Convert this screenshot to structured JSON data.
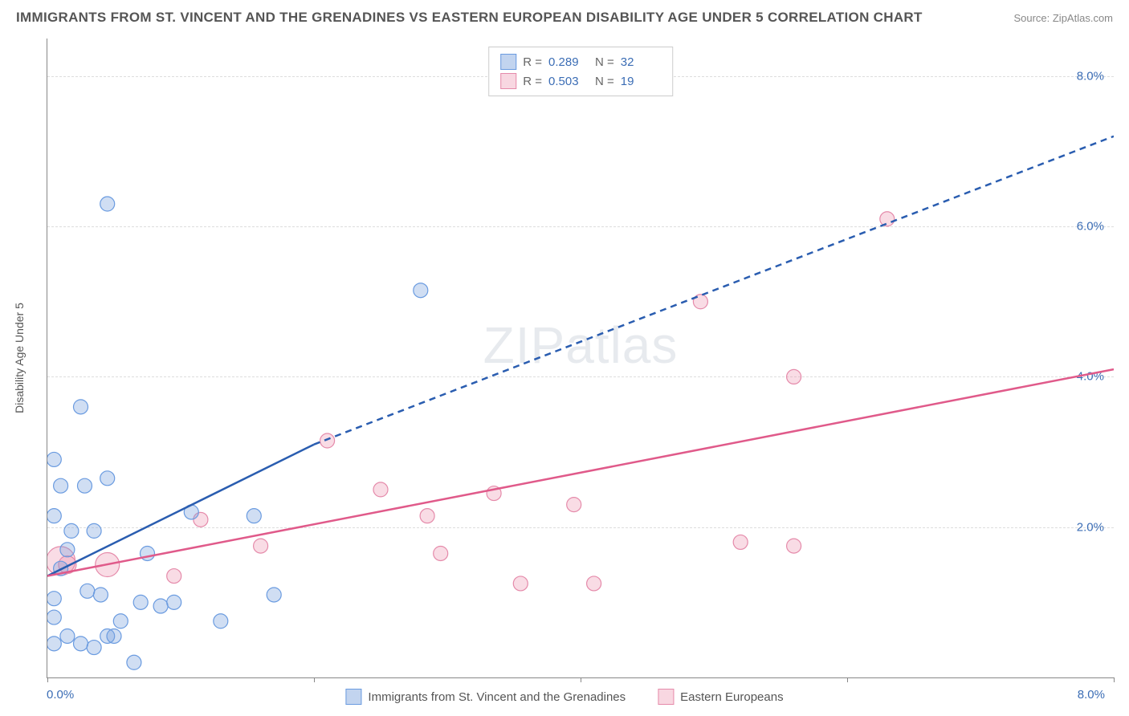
{
  "header": {
    "title": "IMMIGRANTS FROM ST. VINCENT AND THE GRENADINES VS EASTERN EUROPEAN DISABILITY AGE UNDER 5 CORRELATION CHART",
    "source": "Source: ZipAtlas.com"
  },
  "chart": {
    "type": "scatter",
    "y_axis_label": "Disability Age Under 5",
    "x_range": [
      0.0,
      8.0
    ],
    "y_range": [
      0.0,
      8.5
    ],
    "x_ticks": [
      0.0,
      2.0,
      4.0,
      6.0,
      8.0
    ],
    "y_gridlines": [
      2.0,
      4.0,
      6.0,
      8.0
    ],
    "y_tick_labels": [
      "2.0%",
      "4.0%",
      "6.0%",
      "8.0%"
    ],
    "x_tick_label_left": "0.0%",
    "x_tick_label_right": "8.0%",
    "colors": {
      "blue_fill": "rgba(120,160,220,0.35)",
      "blue_stroke": "#6a9be0",
      "pink_fill": "rgba(235,140,170,0.30)",
      "pink_stroke": "#e58aaa",
      "blue_line": "#2a5db0",
      "pink_line": "#e05a8a",
      "axis_text": "#3b6db5",
      "grid": "#dddddd"
    },
    "legend_top": [
      {
        "swatch": "blue",
        "r": "0.289",
        "n": "32"
      },
      {
        "swatch": "pink",
        "r": "0.503",
        "n": "19"
      }
    ],
    "legend_bottom": [
      {
        "swatch": "blue",
        "label": "Immigrants from St. Vincent and the Grenadines"
      },
      {
        "swatch": "pink",
        "label": "Eastern Europeans"
      }
    ],
    "series": {
      "blue": {
        "points": [
          {
            "x": 0.05,
            "y": 1.05,
            "r": 9
          },
          {
            "x": 0.1,
            "y": 1.45,
            "r": 9
          },
          {
            "x": 0.05,
            "y": 2.15,
            "r": 9
          },
          {
            "x": 0.05,
            "y": 2.9,
            "r": 9
          },
          {
            "x": 0.1,
            "y": 2.55,
            "r": 9
          },
          {
            "x": 0.28,
            "y": 2.55,
            "r": 9
          },
          {
            "x": 0.18,
            "y": 1.95,
            "r": 9
          },
          {
            "x": 0.35,
            "y": 1.95,
            "r": 9
          },
          {
            "x": 0.05,
            "y": 0.8,
            "r": 9
          },
          {
            "x": 0.15,
            "y": 0.55,
            "r": 9
          },
          {
            "x": 0.25,
            "y": 0.45,
            "r": 9
          },
          {
            "x": 0.35,
            "y": 0.4,
            "r": 9
          },
          {
            "x": 0.45,
            "y": 0.55,
            "r": 9
          },
          {
            "x": 0.55,
            "y": 0.75,
            "r": 9
          },
          {
            "x": 0.5,
            "y": 0.55,
            "r": 9
          },
          {
            "x": 0.65,
            "y": 0.2,
            "r": 9
          },
          {
            "x": 0.7,
            "y": 1.0,
            "r": 9
          },
          {
            "x": 0.75,
            "y": 1.65,
            "r": 9
          },
          {
            "x": 0.4,
            "y": 1.1,
            "r": 9
          },
          {
            "x": 0.85,
            "y": 0.95,
            "r": 9
          },
          {
            "x": 0.95,
            "y": 1.0,
            "r": 9
          },
          {
            "x": 0.45,
            "y": 2.65,
            "r": 9
          },
          {
            "x": 0.45,
            "y": 6.3,
            "r": 9
          },
          {
            "x": 0.25,
            "y": 3.6,
            "r": 9
          },
          {
            "x": 1.3,
            "y": 0.75,
            "r": 9
          },
          {
            "x": 1.7,
            "y": 1.1,
            "r": 9
          },
          {
            "x": 1.08,
            "y": 2.2,
            "r": 9
          },
          {
            "x": 1.55,
            "y": 2.15,
            "r": 9
          },
          {
            "x": 0.15,
            "y": 1.7,
            "r": 9
          },
          {
            "x": 0.05,
            "y": 0.45,
            "r": 9
          },
          {
            "x": 2.8,
            "y": 5.15,
            "r": 9
          },
          {
            "x": 0.3,
            "y": 1.15,
            "r": 9
          }
        ],
        "trend": {
          "x1": 0.0,
          "y1": 1.35,
          "x2_solid": 2.0,
          "y2_solid": 3.1,
          "x2_dash": 8.0,
          "y2_dash": 7.2
        }
      },
      "pink": {
        "points": [
          {
            "x": 0.1,
            "y": 1.55,
            "r": 18
          },
          {
            "x": 0.45,
            "y": 1.5,
            "r": 15
          },
          {
            "x": 0.15,
            "y": 1.5,
            "r": 11
          },
          {
            "x": 0.95,
            "y": 1.35,
            "r": 9
          },
          {
            "x": 1.15,
            "y": 2.1,
            "r": 9
          },
          {
            "x": 1.6,
            "y": 1.75,
            "r": 9
          },
          {
            "x": 2.1,
            "y": 3.15,
            "r": 9
          },
          {
            "x": 2.5,
            "y": 2.5,
            "r": 9
          },
          {
            "x": 2.85,
            "y": 2.15,
            "r": 9
          },
          {
            "x": 2.95,
            "y": 1.65,
            "r": 9
          },
          {
            "x": 3.35,
            "y": 2.45,
            "r": 9
          },
          {
            "x": 3.55,
            "y": 1.25,
            "r": 9
          },
          {
            "x": 3.95,
            "y": 2.3,
            "r": 9
          },
          {
            "x": 4.1,
            "y": 1.25,
            "r": 9
          },
          {
            "x": 4.9,
            "y": 5.0,
            "r": 9
          },
          {
            "x": 5.2,
            "y": 1.8,
            "r": 9
          },
          {
            "x": 5.6,
            "y": 1.75,
            "r": 9
          },
          {
            "x": 5.6,
            "y": 4.0,
            "r": 9
          },
          {
            "x": 6.3,
            "y": 6.1,
            "r": 9
          }
        ],
        "trend": {
          "x1": 0.0,
          "y1": 1.35,
          "x2_solid": 8.0,
          "y2_solid": 4.1
        }
      }
    },
    "watermark": "ZIPatlas"
  }
}
